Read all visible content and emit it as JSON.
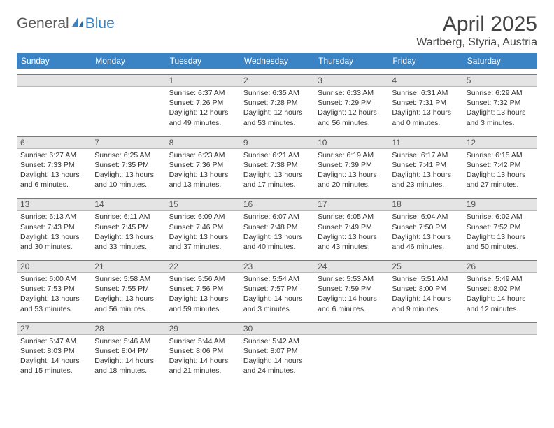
{
  "logo": {
    "word1": "General",
    "word2": "Blue"
  },
  "title": "April 2025",
  "location": "Wartberg, Styria, Austria",
  "colors": {
    "header_bg": "#3a83c5",
    "daynum_bg": "#e4e4e4",
    "daynum_border_top": "#7a7a7a",
    "text": "#333333"
  },
  "days_of_week": [
    "Sunday",
    "Monday",
    "Tuesday",
    "Wednesday",
    "Thursday",
    "Friday",
    "Saturday"
  ],
  "weeks": [
    [
      {
        "n": "",
        "sunrise": "",
        "sunset": "",
        "daylight": ""
      },
      {
        "n": "",
        "sunrise": "",
        "sunset": "",
        "daylight": ""
      },
      {
        "n": "1",
        "sunrise": "Sunrise: 6:37 AM",
        "sunset": "Sunset: 7:26 PM",
        "daylight": "Daylight: 12 hours and 49 minutes."
      },
      {
        "n": "2",
        "sunrise": "Sunrise: 6:35 AM",
        "sunset": "Sunset: 7:28 PM",
        "daylight": "Daylight: 12 hours and 53 minutes."
      },
      {
        "n": "3",
        "sunrise": "Sunrise: 6:33 AM",
        "sunset": "Sunset: 7:29 PM",
        "daylight": "Daylight: 12 hours and 56 minutes."
      },
      {
        "n": "4",
        "sunrise": "Sunrise: 6:31 AM",
        "sunset": "Sunset: 7:31 PM",
        "daylight": "Daylight: 13 hours and 0 minutes."
      },
      {
        "n": "5",
        "sunrise": "Sunrise: 6:29 AM",
        "sunset": "Sunset: 7:32 PM",
        "daylight": "Daylight: 13 hours and 3 minutes."
      }
    ],
    [
      {
        "n": "6",
        "sunrise": "Sunrise: 6:27 AM",
        "sunset": "Sunset: 7:33 PM",
        "daylight": "Daylight: 13 hours and 6 minutes."
      },
      {
        "n": "7",
        "sunrise": "Sunrise: 6:25 AM",
        "sunset": "Sunset: 7:35 PM",
        "daylight": "Daylight: 13 hours and 10 minutes."
      },
      {
        "n": "8",
        "sunrise": "Sunrise: 6:23 AM",
        "sunset": "Sunset: 7:36 PM",
        "daylight": "Daylight: 13 hours and 13 minutes."
      },
      {
        "n": "9",
        "sunrise": "Sunrise: 6:21 AM",
        "sunset": "Sunset: 7:38 PM",
        "daylight": "Daylight: 13 hours and 17 minutes."
      },
      {
        "n": "10",
        "sunrise": "Sunrise: 6:19 AM",
        "sunset": "Sunset: 7:39 PM",
        "daylight": "Daylight: 13 hours and 20 minutes."
      },
      {
        "n": "11",
        "sunrise": "Sunrise: 6:17 AM",
        "sunset": "Sunset: 7:41 PM",
        "daylight": "Daylight: 13 hours and 23 minutes."
      },
      {
        "n": "12",
        "sunrise": "Sunrise: 6:15 AM",
        "sunset": "Sunset: 7:42 PM",
        "daylight": "Daylight: 13 hours and 27 minutes."
      }
    ],
    [
      {
        "n": "13",
        "sunrise": "Sunrise: 6:13 AM",
        "sunset": "Sunset: 7:43 PM",
        "daylight": "Daylight: 13 hours and 30 minutes."
      },
      {
        "n": "14",
        "sunrise": "Sunrise: 6:11 AM",
        "sunset": "Sunset: 7:45 PM",
        "daylight": "Daylight: 13 hours and 33 minutes."
      },
      {
        "n": "15",
        "sunrise": "Sunrise: 6:09 AM",
        "sunset": "Sunset: 7:46 PM",
        "daylight": "Daylight: 13 hours and 37 minutes."
      },
      {
        "n": "16",
        "sunrise": "Sunrise: 6:07 AM",
        "sunset": "Sunset: 7:48 PM",
        "daylight": "Daylight: 13 hours and 40 minutes."
      },
      {
        "n": "17",
        "sunrise": "Sunrise: 6:05 AM",
        "sunset": "Sunset: 7:49 PM",
        "daylight": "Daylight: 13 hours and 43 minutes."
      },
      {
        "n": "18",
        "sunrise": "Sunrise: 6:04 AM",
        "sunset": "Sunset: 7:50 PM",
        "daylight": "Daylight: 13 hours and 46 minutes."
      },
      {
        "n": "19",
        "sunrise": "Sunrise: 6:02 AM",
        "sunset": "Sunset: 7:52 PM",
        "daylight": "Daylight: 13 hours and 50 minutes."
      }
    ],
    [
      {
        "n": "20",
        "sunrise": "Sunrise: 6:00 AM",
        "sunset": "Sunset: 7:53 PM",
        "daylight": "Daylight: 13 hours and 53 minutes."
      },
      {
        "n": "21",
        "sunrise": "Sunrise: 5:58 AM",
        "sunset": "Sunset: 7:55 PM",
        "daylight": "Daylight: 13 hours and 56 minutes."
      },
      {
        "n": "22",
        "sunrise": "Sunrise: 5:56 AM",
        "sunset": "Sunset: 7:56 PM",
        "daylight": "Daylight: 13 hours and 59 minutes."
      },
      {
        "n": "23",
        "sunrise": "Sunrise: 5:54 AM",
        "sunset": "Sunset: 7:57 PM",
        "daylight": "Daylight: 14 hours and 3 minutes."
      },
      {
        "n": "24",
        "sunrise": "Sunrise: 5:53 AM",
        "sunset": "Sunset: 7:59 PM",
        "daylight": "Daylight: 14 hours and 6 minutes."
      },
      {
        "n": "25",
        "sunrise": "Sunrise: 5:51 AM",
        "sunset": "Sunset: 8:00 PM",
        "daylight": "Daylight: 14 hours and 9 minutes."
      },
      {
        "n": "26",
        "sunrise": "Sunrise: 5:49 AM",
        "sunset": "Sunset: 8:02 PM",
        "daylight": "Daylight: 14 hours and 12 minutes."
      }
    ],
    [
      {
        "n": "27",
        "sunrise": "Sunrise: 5:47 AM",
        "sunset": "Sunset: 8:03 PM",
        "daylight": "Daylight: 14 hours and 15 minutes."
      },
      {
        "n": "28",
        "sunrise": "Sunrise: 5:46 AM",
        "sunset": "Sunset: 8:04 PM",
        "daylight": "Daylight: 14 hours and 18 minutes."
      },
      {
        "n": "29",
        "sunrise": "Sunrise: 5:44 AM",
        "sunset": "Sunset: 8:06 PM",
        "daylight": "Daylight: 14 hours and 21 minutes."
      },
      {
        "n": "30",
        "sunrise": "Sunrise: 5:42 AM",
        "sunset": "Sunset: 8:07 PM",
        "daylight": "Daylight: 14 hours and 24 minutes."
      },
      {
        "n": "",
        "sunrise": "",
        "sunset": "",
        "daylight": ""
      },
      {
        "n": "",
        "sunrise": "",
        "sunset": "",
        "daylight": ""
      },
      {
        "n": "",
        "sunrise": "",
        "sunset": "",
        "daylight": ""
      }
    ]
  ]
}
